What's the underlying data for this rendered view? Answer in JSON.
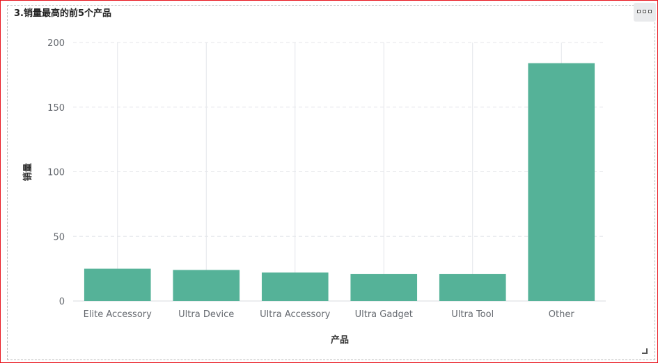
{
  "panel": {
    "title": "3.销量最高的前5个产品",
    "more_menu_icon": "more-options-icon",
    "resize_icon": "resize-handle-icon"
  },
  "colors": {
    "bar": "#55b298",
    "grid": "#e4e6ea",
    "border": "#e8121b"
  },
  "chart_data": {
    "type": "bar",
    "title": "3.销量最高的前5个产品",
    "xlabel": "产品",
    "ylabel": "销量",
    "categories": [
      "Elite Accessory",
      "Ultra Device",
      "Ultra Accessory",
      "Ultra Gadget",
      "Ultra Tool",
      "Other"
    ],
    "values": [
      25,
      24,
      22,
      21,
      21,
      184
    ],
    "ylim": [
      0,
      200
    ],
    "yticks": [
      "0",
      "50",
      "100",
      "150",
      "200"
    ],
    "grid": true,
    "legend": "none"
  }
}
